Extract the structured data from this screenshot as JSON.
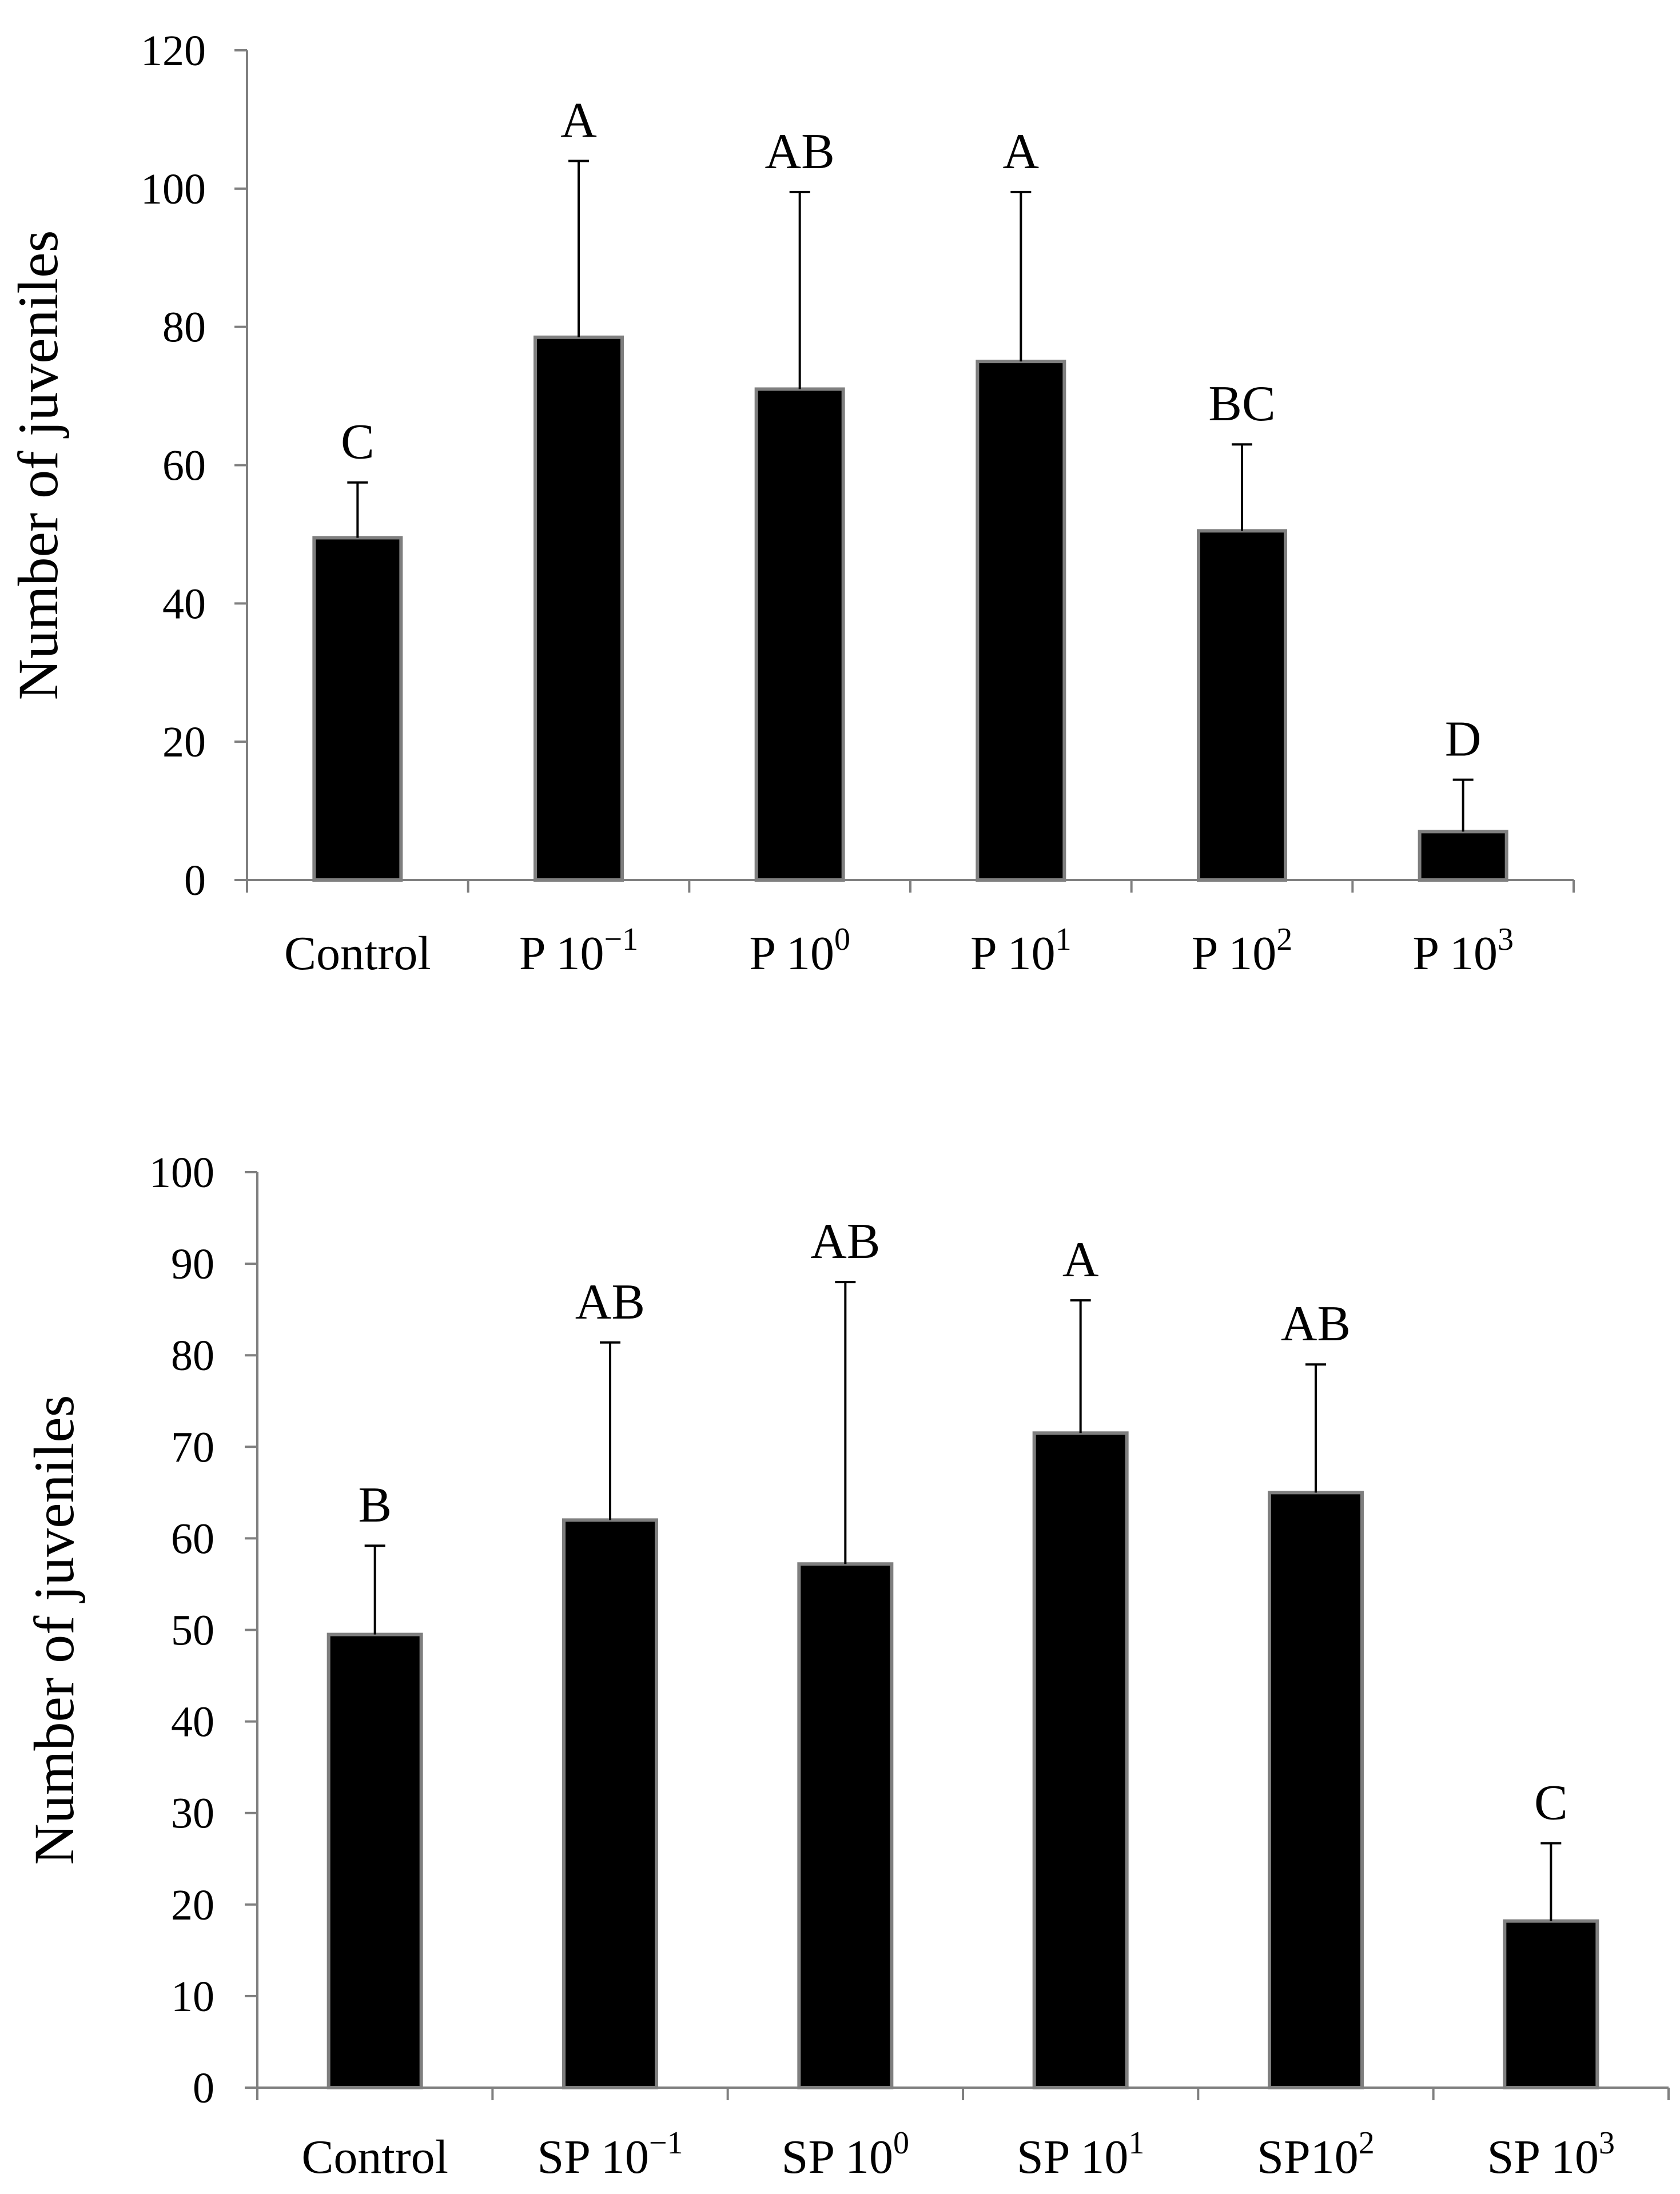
{
  "colors": {
    "bar_fill": "#000000",
    "bar_stroke": "#7f7f7f",
    "axis": "#7f7f7f",
    "error_bar": "#000000",
    "text": "#000000",
    "background": "#ffffff"
  },
  "chart_data": [
    {
      "type": "bar",
      "title": "",
      "xlabel": "",
      "ylabel": "Number of juveniles",
      "ylim": [
        0,
        120
      ],
      "yticks": [
        0,
        20,
        40,
        60,
        80,
        100,
        120
      ],
      "categories": [
        {
          "base": "Control",
          "sup": ""
        },
        {
          "base": "P 10",
          "sup": "−1"
        },
        {
          "base": "P 10",
          "sup": "0"
        },
        {
          "base": "P 10",
          "sup": "1"
        },
        {
          "base": "P 10",
          "sup": "2"
        },
        {
          "base": "P 10",
          "sup": "3"
        }
      ],
      "values": [
        49.5,
        78.5,
        71,
        75,
        50.5,
        7
      ],
      "error_upper": [
        57.5,
        104,
        99.5,
        99.5,
        63,
        14.5
      ],
      "significance_letters": [
        "C",
        "A",
        "AB",
        "A",
        "BC",
        "D"
      ]
    },
    {
      "type": "bar",
      "title": "",
      "xlabel": "",
      "ylabel": "Number of juveniles",
      "ylim": [
        0,
        100
      ],
      "yticks": [
        0,
        10,
        20,
        30,
        40,
        50,
        60,
        70,
        80,
        90,
        100
      ],
      "categories": [
        {
          "base": "Control",
          "sup": ""
        },
        {
          "base": "SP 10",
          "sup": "−1"
        },
        {
          "base": "SP 10",
          "sup": "0"
        },
        {
          "base": "SP 10",
          "sup": "1"
        },
        {
          "base": "SP10",
          "sup": "2"
        },
        {
          "base": "SP 10",
          "sup": "3"
        }
      ],
      "values": [
        49.5,
        62,
        57.2,
        71.5,
        65,
        18.2
      ],
      "error_upper": [
        59.2,
        81.4,
        88,
        86,
        79,
        26.7
      ],
      "significance_letters": [
        "B",
        "AB",
        "AB",
        "A",
        "AB",
        "C"
      ]
    }
  ]
}
